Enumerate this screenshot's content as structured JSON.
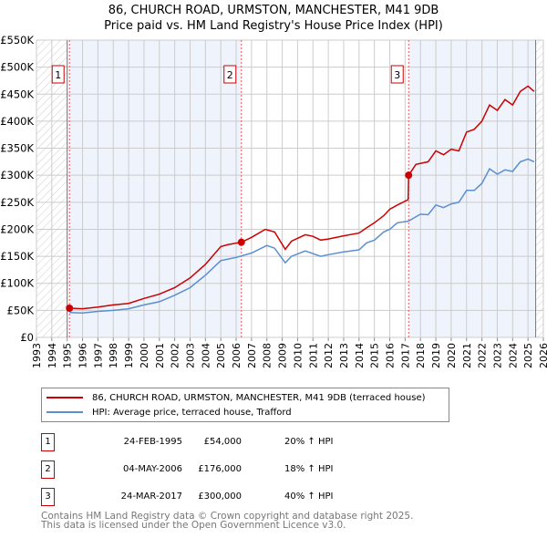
{
  "chart_data": {
    "type": "line",
    "title": "86, CHURCH ROAD, URMSTON, MANCHESTER, M41 9DB",
    "subtitle": "Price paid vs. HM Land Registry's House Price Index (HPI)",
    "xlim": [
      1993,
      2026
    ],
    "ylim": [
      0,
      550000
    ],
    "x_ticks": [
      "1993",
      "1994",
      "1995",
      "1996",
      "1997",
      "1998",
      "1999",
      "2000",
      "2001",
      "2002",
      "2003",
      "2004",
      "2005",
      "2006",
      "2007",
      "2008",
      "2009",
      "2010",
      "2011",
      "2012",
      "2013",
      "2014",
      "2015",
      "2016",
      "2017",
      "2018",
      "2019",
      "2020",
      "2021",
      "2022",
      "2023",
      "2024",
      "2025",
      "2026"
    ],
    "y_ticks": [
      {
        "v": 0,
        "l": "£0"
      },
      {
        "v": 50000,
        "l": "£50K"
      },
      {
        "v": 100000,
        "l": "£100K"
      },
      {
        "v": 150000,
        "l": "£150K"
      },
      {
        "v": 200000,
        "l": "£200K"
      },
      {
        "v": 250000,
        "l": "£250K"
      },
      {
        "v": 300000,
        "l": "£300K"
      },
      {
        "v": 350000,
        "l": "£350K"
      },
      {
        "v": 400000,
        "l": "£400K"
      },
      {
        "v": 450000,
        "l": "£450K"
      },
      {
        "v": 500000,
        "l": "£500K"
      },
      {
        "v": 550000,
        "l": "£550K"
      }
    ],
    "grid": true,
    "series": [
      {
        "name": "86, CHURCH ROAD, URMSTON, MANCHESTER, M41 9DB (terraced house)",
        "color": "#cc0000",
        "x": [
          1995.15,
          1996,
          1997,
          1998,
          1999,
          2000,
          2001,
          2002,
          2003,
          2004,
          2005,
          2005.5,
          2006.34,
          2007,
          2007.9,
          2008.5,
          2009.2,
          2009.6,
          2010.5,
          2011,
          2011.5,
          2012,
          2013,
          2014,
          2014.5,
          2015,
          2015.6,
          2016,
          2016.5,
          2017.2,
          2017.23,
          2017.7,
          2018.5,
          2019,
          2019.5,
          2020,
          2020.5,
          2021,
          2021.5,
          2022,
          2022.5,
          2023,
          2023.5,
          2024,
          2024.5,
          2025,
          2025.4
        ],
        "y": [
          54000,
          53000,
          56000,
          60000,
          63000,
          72000,
          80000,
          92000,
          110000,
          135000,
          168000,
          172000,
          176000,
          185000,
          200000,
          195000,
          163000,
          178000,
          190000,
          187000,
          180000,
          182000,
          188000,
          193000,
          203000,
          212000,
          225000,
          237000,
          245000,
          255000,
          300000,
          320000,
          325000,
          345000,
          338000,
          348000,
          345000,
          380000,
          385000,
          400000,
          430000,
          420000,
          440000,
          430000,
          455000,
          465000,
          455000
        ]
      },
      {
        "name": "HPI: Average price, terraced house, Trafford",
        "color": "#5b8fd0",
        "x": [
          1995.15,
          1996,
          1997,
          1998,
          1999,
          2000,
          2001,
          2002,
          2003,
          2004,
          2005,
          2006,
          2007,
          2008,
          2008.5,
          2009.2,
          2009.6,
          2010.5,
          2011.5,
          2012,
          2013,
          2014,
          2014.5,
          2015,
          2015.6,
          2016,
          2016.5,
          2017.2,
          2018,
          2018.5,
          2019,
          2019.5,
          2020,
          2020.5,
          2021,
          2021.5,
          2022,
          2022.5,
          2023,
          2023.5,
          2024,
          2024.5,
          2025,
          2025.4
        ],
        "y": [
          46000,
          45000,
          48000,
          50000,
          53000,
          60000,
          66000,
          78000,
          92000,
          115000,
          142000,
          148000,
          156000,
          170000,
          165000,
          138000,
          150000,
          160000,
          150000,
          153000,
          158000,
          162000,
          175000,
          180000,
          195000,
          200000,
          212000,
          215000,
          228000,
          227000,
          245000,
          240000,
          247000,
          250000,
          272000,
          272000,
          285000,
          312000,
          302000,
          310000,
          307000,
          325000,
          330000,
          325000
        ]
      }
    ],
    "sales": [
      {
        "n": "1",
        "x": 2006.34,
        "xs": 1995.15,
        "y": 54000
      },
      {
        "n": "2",
        "xs": 2006.34,
        "y": 176000
      },
      {
        "n": "3",
        "xs": 2017.23,
        "y": 300000
      }
    ],
    "legend_position": "bottom"
  },
  "title_line1": "86, CHURCH ROAD, URMSTON, MANCHESTER, M41 9DB",
  "title_line2": "Price paid vs. HM Land Registry's House Price Index (HPI)",
  "legend": [
    "86, CHURCH ROAD, URMSTON, MANCHESTER, M41 9DB (terraced house)",
    "HPI: Average price, terraced house, Trafford"
  ],
  "sales_table": [
    {
      "n": "1",
      "date": "24-FEB-1995",
      "price": "£54,000",
      "hpi": "20% ↑ HPI"
    },
    {
      "n": "2",
      "date": "04-MAY-2006",
      "price": "£176,000",
      "hpi": "18% ↑ HPI"
    },
    {
      "n": "3",
      "date": "24-MAR-2017",
      "price": "£300,000",
      "hpi": "40% ↑ HPI"
    }
  ],
  "footer1": "Contains HM Land Registry data © Crown copyright and database right 2025.",
  "footer2": "This data is licensed under the Open Government Licence v3.0."
}
